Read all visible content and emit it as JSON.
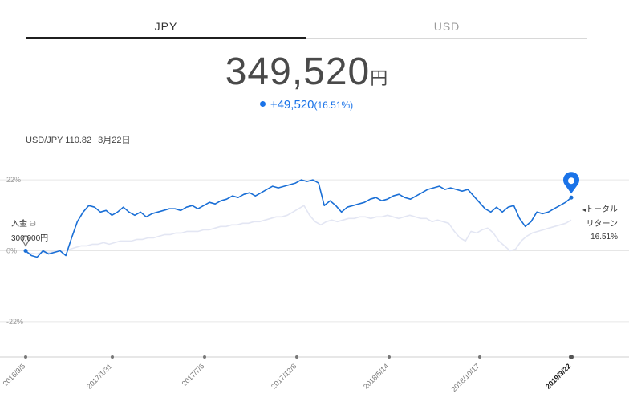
{
  "tabs": [
    {
      "label": "JPY",
      "active": true
    },
    {
      "label": "USD",
      "active": false
    }
  ],
  "balance": {
    "value": "349,520",
    "unit": "円"
  },
  "change": {
    "amount": "+49,520",
    "percent": "(16.51%)"
  },
  "fx": {
    "pair_rate": "USD/JPY 110.82",
    "date": "3月22日"
  },
  "deposit": {
    "label": "入金",
    "amount": "300,000円"
  },
  "total_return": {
    "label_1": "トータル",
    "label_2": "リターン",
    "value": "16.51%"
  },
  "colors": {
    "accent": "#1a73e8",
    "line_primary": "#1a6fd6",
    "line_benchmark": "#e3e6f3",
    "grid": "#e6e6e6"
  },
  "chart_data": {
    "type": "line",
    "ylim": [
      -33,
      28
    ],
    "yticks": [
      22,
      0,
      -22
    ],
    "ytick_labels": [
      "22%",
      "0%",
      "-22%"
    ],
    "x_tick_labels": [
      "2016/9/5",
      "2017/1/31",
      "2017/7/6",
      "2017/12/8",
      "2018/5/14",
      "2018/10/17",
      "2019/3/22"
    ],
    "series": [
      {
        "values": [
          0,
          -1.5,
          -2,
          0,
          -1,
          -0.5,
          0,
          -1.5,
          4,
          9,
          12,
          14,
          13.5,
          12,
          12.5,
          11,
          12,
          13.5,
          12,
          11,
          12,
          10.5,
          11.5,
          12,
          12.5,
          13,
          13,
          12.5,
          13.5,
          14,
          13,
          14,
          15,
          14.5,
          15.5,
          16,
          17,
          16.5,
          17.5,
          18,
          17,
          18,
          19,
          20,
          19.5,
          20,
          20.5,
          21,
          22,
          21.5,
          22,
          21,
          14,
          15.5,
          14,
          12,
          13.5,
          14,
          14.5,
          15,
          16,
          16.5,
          15.5,
          16,
          17,
          17.5,
          16.5,
          16,
          17,
          18,
          19,
          19.5,
          20,
          19,
          19.5,
          19,
          18.5,
          19,
          17,
          15,
          13,
          12,
          13.5,
          12,
          13.5,
          14,
          10,
          7.5,
          9,
          12,
          11.5,
          12,
          13,
          14,
          15,
          16.5
        ]
      },
      {
        "values": [
          -0.5,
          -0.8,
          -1,
          -0.5,
          -0.5,
          -0.3,
          0,
          0,
          0.5,
          1,
          1.5,
          1.5,
          2,
          2,
          2.5,
          2,
          2.5,
          3,
          3,
          3,
          3.5,
          3.5,
          4,
          4,
          4.5,
          5,
          5,
          5.5,
          5.5,
          6,
          6,
          6,
          6.5,
          6.5,
          7,
          7.5,
          7.5,
          8,
          8,
          8.5,
          8.5,
          9,
          9,
          9.5,
          10,
          10.5,
          10.5,
          11,
          12,
          13,
          14,
          11,
          9,
          8,
          9,
          9.5,
          9,
          9.5,
          10,
          10,
          10.5,
          10.5,
          10,
          10.5,
          10.5,
          11,
          10.5,
          10,
          10.5,
          11,
          10.5,
          10,
          10,
          9,
          9.5,
          9,
          8.5,
          6,
          4,
          3,
          6,
          5.5,
          6.5,
          7,
          5.5,
          3,
          1.5,
          0,
          0.5,
          3,
          4.5,
          5.5,
          6,
          6.5,
          7,
          7.5,
          8,
          8.5,
          9.5
        ]
      }
    ]
  }
}
